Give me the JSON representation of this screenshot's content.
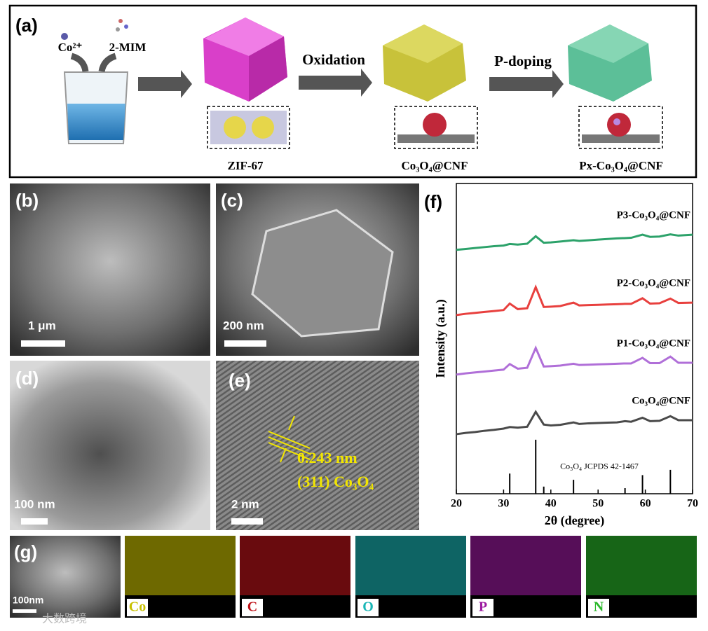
{
  "panels": {
    "a": {
      "label": "(a)",
      "ion": "Co²⁺",
      "ligand": "2-MIM",
      "step1": "Oxidation",
      "step2": "P-doping",
      "product1": "ZIF-67",
      "product2": "Co₃O₄@CNF",
      "product3": "Px-Co₃O₄@CNF"
    },
    "b": {
      "label": "(b)",
      "scale": "1 μm"
    },
    "c": {
      "label": "(c)",
      "scale": "200 nm"
    },
    "d": {
      "label": "(d)",
      "scale": "100 nm"
    },
    "e": {
      "label": "(e)",
      "scale": "2 nm",
      "spacing": "0.243 nm",
      "plane": "(311) Co₃O₄"
    },
    "f": {
      "label": "(f)"
    },
    "g": {
      "label": "(g)",
      "scale": "100nm",
      "elements": [
        "Co",
        "C",
        "O",
        "P",
        "N"
      ]
    }
  },
  "watermark": "大数跨境",
  "chart_data": {
    "type": "line",
    "xlabel": "2θ (degree)",
    "ylabel": "Intensity (a.u.)",
    "x": [
      20,
      22,
      24,
      26,
      28,
      30,
      31.3,
      33,
      35,
      36.8,
      38.5,
      40,
      42,
      44.8,
      46,
      48,
      50,
      52,
      54,
      55.7,
      57,
      59.4,
      61,
      63,
      65.3,
      67,
      70
    ],
    "xlim": [
      20,
      70
    ],
    "xticks": [
      20,
      30,
      40,
      50,
      60,
      70
    ],
    "ylim": [
      0,
      100
    ],
    "series": [
      {
        "name": "P3-Co₃O₄@CNF",
        "color": "#2ca26a",
        "values": [
          78.6,
          78.9,
          79.2,
          79.5,
          79.8,
          80.0,
          80.5,
          80.3,
          80.6,
          83.0,
          80.9,
          81.0,
          81.3,
          81.7,
          81.5,
          81.7,
          81.9,
          82.1,
          82.3,
          82.4,
          82.5,
          83.5,
          82.8,
          82.9,
          83.6,
          83.2,
          83.5
        ]
      },
      {
        "name": "P2-Co₃O₄@CNF",
        "color": "#e8403e",
        "values": [
          57.6,
          58.0,
          58.3,
          58.6,
          58.9,
          59.2,
          61.3,
          59.5,
          59.8,
          66.6,
          60.2,
          60.3,
          60.5,
          61.6,
          60.7,
          60.8,
          60.9,
          61.0,
          61.1,
          61.2,
          61.2,
          63.0,
          61.3,
          61.4,
          62.9,
          61.5,
          61.6
        ]
      },
      {
        "name": "P1-Co₃O₄@CNF",
        "color": "#b06fd8",
        "values": [
          38.4,
          38.8,
          39.1,
          39.4,
          39.7,
          40.0,
          41.8,
          40.3,
          40.6,
          47.0,
          41.0,
          41.1,
          41.3,
          41.9,
          41.5,
          41.6,
          41.7,
          41.8,
          41.9,
          42.0,
          42.0,
          43.8,
          42.1,
          42.1,
          44.2,
          42.2,
          42.2
        ]
      },
      {
        "name": "Co₃O₄@CNF",
        "color": "#4a4a4a",
        "values": [
          19.2,
          19.6,
          19.9,
          20.3,
          20.6,
          21.0,
          21.5,
          21.3,
          21.6,
          26.4,
          22.3,
          22.0,
          22.2,
          23.0,
          22.5,
          22.7,
          22.8,
          22.9,
          23.0,
          23.4,
          23.2,
          24.5,
          23.4,
          23.5,
          25.0,
          23.7,
          23.7
        ]
      }
    ],
    "reference": {
      "name": "Co₃O₄ JCPDS 42-1467",
      "color": "#000000",
      "x": [
        31.3,
        36.8,
        38.5,
        44.8,
        55.7,
        59.4,
        65.3
      ],
      "values": [
        6.5,
        17.4,
        2.3,
        4.5,
        1.8,
        6.0,
        7.7
      ]
    }
  }
}
